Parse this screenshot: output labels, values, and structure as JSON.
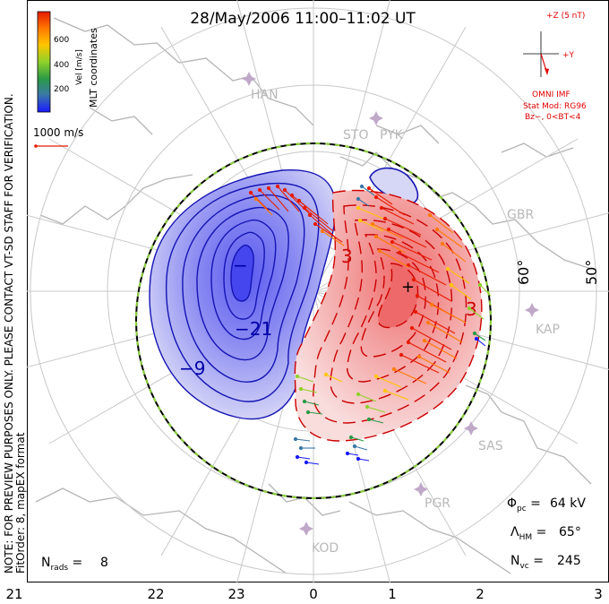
{
  "title": "28/May/2006  11:00–11:02  UT",
  "colorbar": {
    "label": "Vel [m/s]",
    "ticks": [
      "200",
      "400",
      "600"
    ],
    "colors": [
      "#1a1aff",
      "#3a78a8",
      "#2a9a46",
      "#8fd12a",
      "#ffc500",
      "#ff7a00",
      "#e81a00"
    ]
  },
  "mlt_coordinates_label": "MLT coordinates",
  "vector_scale": "1000 m/s",
  "note": "NOTE: FOR PREVIEW PURPOSES ONLY. PLEASE CONTACT VT-SD STAFF FOR VERIFICATION.",
  "fit_order": "FitOrder: 8, mapEX format",
  "imf": {
    "z_label": "+Z (5 nT)",
    "y_label": "+Y",
    "source": "OMNI IMF",
    "stat_mod": "Stat Mod: RG96",
    "condition": "Bz−, 0<BT<4"
  },
  "latitude_labels": [
    "60°",
    "50°"
  ],
  "mlt_ticks": [
    "21",
    "22",
    "23",
    "0",
    "1",
    "2",
    "3"
  ],
  "radar_sites": [
    "HAN",
    "STO",
    "PYK",
    "GBR",
    "KAP",
    "SAS",
    "PGR",
    "KOD"
  ],
  "contour_labels": {
    "neg1": "−21",
    "neg2": "−9",
    "pos": "3",
    "min_marker": "−",
    "max_marker": "+"
  },
  "stats": {
    "phi_pc": "64 kV",
    "lambda_hm": "65°",
    "n_vc": "245",
    "n_rads": "8"
  }
}
